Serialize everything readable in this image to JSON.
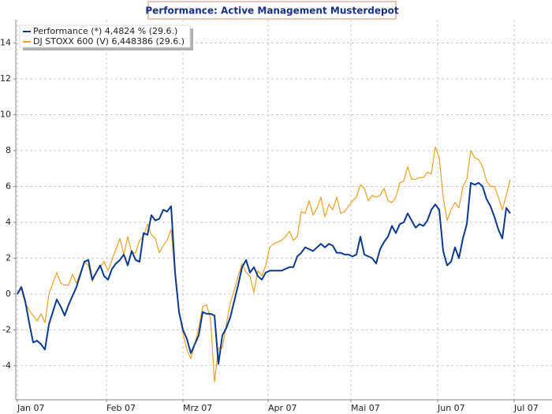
{
  "chart_data": {
    "type": "line",
    "title": "Performance: Active Management Musterdepot",
    "series": [
      {
        "name": "Performance (*) 4,4824 % (29.6.)",
        "color": "#0b3a8c",
        "values": [
          0,
          0.4,
          -0.4,
          -1.6,
          -2.7,
          -2.6,
          -2.8,
          -3.1,
          -1.7,
          -1.0,
          -0.3,
          -0.7,
          -1.2,
          -0.6,
          -0.1,
          0.4,
          1.1,
          1.8,
          1.9,
          0.8,
          1.2,
          1.6,
          1.0,
          0.8,
          1.4,
          1.7,
          1.9,
          2.2,
          1.6,
          2.4,
          1.9,
          1.8,
          3.4,
          3.3,
          4.4,
          4.1,
          4.2,
          4.7,
          4.6,
          4.9,
          1.2,
          -1.0,
          -2.0,
          -2.5,
          -3.3,
          -2.8,
          -2.3,
          -1.0,
          -1.1,
          -1.1,
          -1.2,
          -3.9,
          -2.3,
          -1.9,
          -1.3,
          -0.4,
          0.5,
          1.5,
          1.9,
          1.2,
          1.5,
          1.0,
          0.8,
          1.2,
          1.3,
          1.3,
          1.3,
          1.3,
          1.4,
          1.5,
          1.5,
          2.1,
          2.3,
          2.6,
          2.5,
          2.4,
          2.6,
          2.8,
          2.6,
          2.8,
          2.7,
          2.3,
          2.3,
          2.2,
          2.2,
          2.1,
          2.2,
          3.2,
          2.2,
          2.1,
          2.0,
          1.7,
          2.5,
          2.9,
          3.2,
          3.8,
          3.4,
          3.9,
          4.0,
          4.5,
          4.1,
          3.7,
          3.9,
          3.8,
          4.1,
          4.7,
          5.0,
          4.7,
          2.4,
          1.6,
          1.8,
          2.6,
          2.0,
          3.1,
          3.9,
          6.2,
          6.1,
          6.2,
          6.0,
          5.3,
          4.9,
          4.3,
          3.6,
          3.1,
          4.8,
          4.5
        ]
      },
      {
        "name": "DJ STOXX 600 (V) 6,448386 (29.6.)",
        "color": "#f0a020",
        "values": [
          0,
          0.3,
          -0.5,
          -0.9,
          -1.2,
          -1.5,
          -1.1,
          -1.6,
          0.0,
          0.6,
          1.2,
          0.6,
          0.5,
          0.5,
          1.1,
          0.6,
          1.2,
          1.8,
          1.6,
          0.7,
          1.2,
          1.5,
          1.8,
          1.3,
          1.9,
          2.5,
          3.1,
          2.2,
          3.2,
          2.3,
          2.3,
          3.0,
          3.2,
          3.9,
          3.3,
          3.1,
          2.3,
          2.7,
          3.0,
          3.6,
          1.0,
          -0.9,
          -2.2,
          -3.1,
          -3.6,
          -2.8,
          -1.9,
          -0.7,
          -0.6,
          -1.4,
          -4.9,
          -3.0,
          -3.0,
          -1.7,
          -0.5,
          0.2,
          1.0,
          1.7,
          1.2,
          1.0,
          0.1,
          1.3,
          1.0,
          1.6,
          2.6,
          2.8,
          2.9,
          3.0,
          3.2,
          3.5,
          3.0,
          3.2,
          4.6,
          4.5,
          5.2,
          4.4,
          4.8,
          5.4,
          4.3,
          5.0,
          4.7,
          5.4,
          4.5,
          4.6,
          4.9,
          5.2,
          5.4,
          6.1,
          5.9,
          5.2,
          5.5,
          5.4,
          5.5,
          5.9,
          5.2,
          5.1,
          5.4,
          6.2,
          6.3,
          7.1,
          6.4,
          6.4,
          6.5,
          6.5,
          6.8,
          6.7,
          8.2,
          7.6,
          5.4,
          4.1,
          4.7,
          5.1,
          4.8,
          6.0,
          6.4,
          8.0,
          7.6,
          7.5,
          7.1,
          6.3,
          6.0,
          6.0,
          5.4,
          4.7,
          5.5,
          6.4
        ]
      }
    ],
    "xlim": [
      -0.4,
      135.6
    ],
    "xticks": [
      {
        "value": 0,
        "label": "Jan 07"
      },
      {
        "value": 22.6,
        "label": "Feb 07"
      },
      {
        "value": 42,
        "label": "Mrz 07"
      },
      {
        "value": 63.6,
        "label": "Apr 07"
      },
      {
        "value": 84.6,
        "label": "Mai 07"
      },
      {
        "value": 106.6,
        "label": "Jun 07"
      },
      {
        "value": 126,
        "label": "Jul 07"
      }
    ],
    "ylim": [
      -5.9,
      15.3
    ],
    "yticks": [
      -4,
      -2,
      0,
      2,
      4,
      6,
      8,
      10,
      12,
      14
    ],
    "grid": true,
    "legend": "upper left"
  }
}
